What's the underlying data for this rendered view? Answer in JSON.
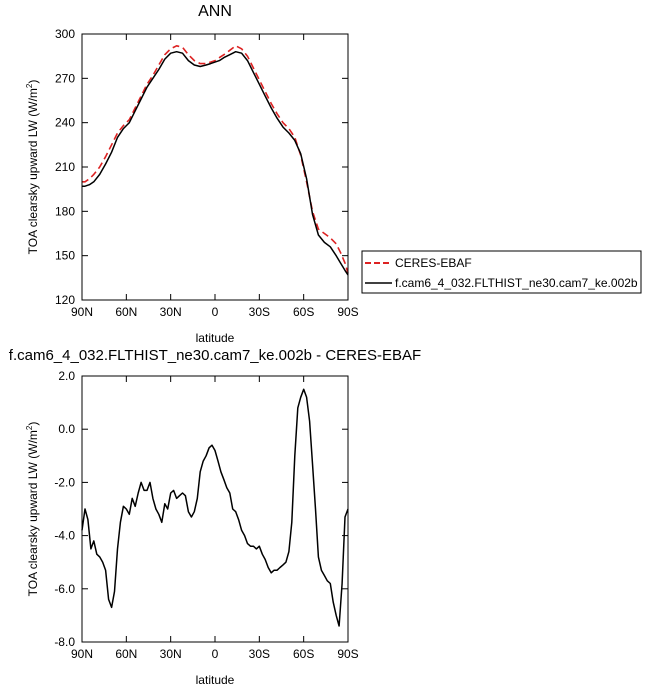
{
  "chart_data": [
    {
      "type": "line",
      "title": "ANN",
      "xlabel": "latitude",
      "ylabel_main": "TOA clearsky upward LW (W/m",
      "ylabel_sup": "2",
      "ylabel_end": ")",
      "xlim": [
        90,
        -90
      ],
      "ylim": [
        120,
        300
      ],
      "xticks": [
        90,
        60,
        30,
        0,
        -30,
        -60,
        -90
      ],
      "xtick_labels": [
        "90N",
        "60N",
        "30N",
        "0",
        "30S",
        "60S",
        "90S"
      ],
      "yticks": [
        120,
        150,
        180,
        210,
        240,
        270,
        300
      ],
      "ytick_labels": [
        "120",
        "150",
        "180",
        "210",
        "240",
        "270",
        "300"
      ],
      "legend": "outside-right-bottom",
      "series": [
        {
          "name": "CERES-EBAF",
          "color": "#dd2222",
          "dash": "dashed",
          "x": [
            90,
            88,
            85,
            82,
            78,
            74,
            70,
            66,
            62,
            58,
            54,
            50,
            46,
            42,
            38,
            34,
            30,
            26,
            22,
            18,
            14,
            10,
            6,
            3,
            0,
            -3,
            -6,
            -10,
            -14,
            -18,
            -22,
            -26,
            -30,
            -34,
            -38,
            -42,
            -46,
            -50,
            -54,
            -58,
            -62,
            -66,
            -70,
            -74,
            -78,
            -82,
            -85,
            -88,
            -90
          ],
          "values": [
            200,
            200,
            202,
            205,
            210,
            217,
            225,
            233,
            238,
            242,
            250,
            258,
            266,
            272,
            279,
            286,
            290,
            292,
            291,
            286,
            282,
            280,
            280,
            281,
            282,
            284,
            286,
            289,
            292,
            290,
            285,
            277,
            269,
            261,
            253,
            246,
            240,
            236,
            230,
            218,
            200,
            180,
            168,
            165,
            162,
            158,
            152,
            145,
            138
          ]
        },
        {
          "name": "f.cam6_4_032.FLTHIST_ne30.cam7_ke.002b",
          "color": "#000000",
          "dash": "solid",
          "x": [
            90,
            88,
            85,
            82,
            78,
            74,
            70,
            66,
            62,
            58,
            54,
            50,
            46,
            42,
            38,
            34,
            30,
            26,
            22,
            18,
            14,
            10,
            6,
            3,
            0,
            -3,
            -6,
            -10,
            -14,
            -18,
            -22,
            -26,
            -30,
            -34,
            -38,
            -42,
            -46,
            -50,
            -54,
            -58,
            -62,
            -66,
            -70,
            -74,
            -78,
            -82,
            -85,
            -88,
            -90
          ],
          "values": [
            197,
            197,
            198,
            200,
            205,
            212,
            220,
            230,
            236,
            240,
            248,
            256,
            264,
            270,
            276,
            283,
            287,
            288,
            287,
            282,
            279,
            278,
            279,
            280,
            281,
            282,
            284,
            286,
            288,
            287,
            282,
            274,
            266,
            258,
            250,
            243,
            237,
            233,
            228,
            219,
            202,
            178,
            164,
            159,
            156,
            150,
            145,
            140,
            137
          ]
        }
      ]
    },
    {
      "type": "line",
      "title": "f.cam6_4_032.FLTHIST_ne30.cam7_ke.002b - CERES-EBAF",
      "xlabel": "latitude",
      "ylabel_main": "TOA clearsky upward LW (W/m",
      "ylabel_sup": "2",
      "ylabel_end": ")",
      "xlim": [
        90,
        -90
      ],
      "ylim": [
        -8,
        2
      ],
      "xticks": [
        90,
        60,
        30,
        0,
        -30,
        -60,
        -90
      ],
      "xtick_labels": [
        "90N",
        "60N",
        "30N",
        "0",
        "30S",
        "60S",
        "90S"
      ],
      "yticks": [
        -8,
        -6,
        -4,
        -2,
        0,
        2
      ],
      "ytick_labels": [
        "-8.0",
        "-6.0",
        "-4.0",
        "-2.0",
        "0.0",
        "2.0"
      ],
      "series": [
        {
          "color": "#000000",
          "dash": "solid",
          "x": [
            90,
            88,
            86,
            84,
            82,
            80,
            78,
            76,
            74,
            72,
            70,
            68,
            66,
            64,
            62,
            60,
            58,
            56,
            54,
            52,
            50,
            48,
            46,
            44,
            42,
            40,
            38,
            36,
            34,
            32,
            30,
            28,
            26,
            24,
            22,
            20,
            18,
            16,
            14,
            12,
            10,
            8,
            6,
            4,
            2,
            0,
            -2,
            -4,
            -6,
            -8,
            -10,
            -12,
            -14,
            -16,
            -18,
            -20,
            -22,
            -24,
            -26,
            -28,
            -30,
            -32,
            -34,
            -36,
            -38,
            -40,
            -42,
            -44,
            -46,
            -48,
            -50,
            -52,
            -54,
            -56,
            -58,
            -60,
            -62,
            -64,
            -66,
            -68,
            -70,
            -72,
            -74,
            -76,
            -78,
            -80,
            -82,
            -84,
            -86,
            -88,
            -90
          ],
          "values": [
            -3.8,
            -3.0,
            -3.4,
            -4.5,
            -4.2,
            -4.7,
            -4.8,
            -5.0,
            -5.3,
            -6.4,
            -6.7,
            -6.1,
            -4.5,
            -3.5,
            -2.9,
            -3.0,
            -3.2,
            -2.6,
            -2.9,
            -2.4,
            -2.0,
            -2.3,
            -2.3,
            -2.0,
            -2.6,
            -3.0,
            -3.2,
            -3.5,
            -2.8,
            -3.0,
            -2.4,
            -2.3,
            -2.6,
            -2.5,
            -2.4,
            -2.5,
            -3.1,
            -3.3,
            -3.1,
            -2.6,
            -1.6,
            -1.2,
            -1.0,
            -0.7,
            -0.6,
            -0.8,
            -1.2,
            -1.6,
            -1.9,
            -2.2,
            -2.4,
            -3.0,
            -3.1,
            -3.4,
            -3.8,
            -4.0,
            -4.3,
            -4.4,
            -4.4,
            -4.5,
            -4.4,
            -4.7,
            -4.9,
            -5.2,
            -5.4,
            -5.3,
            -5.3,
            -5.2,
            -5.1,
            -5.0,
            -4.6,
            -3.5,
            -1.0,
            0.8,
            1.2,
            1.5,
            1.2,
            0.3,
            -1.3,
            -3.0,
            -4.8,
            -5.3,
            -5.5,
            -5.7,
            -5.8,
            -6.5,
            -7.0,
            -7.4,
            -5.8,
            -3.3,
            -3.0
          ]
        }
      ]
    }
  ]
}
